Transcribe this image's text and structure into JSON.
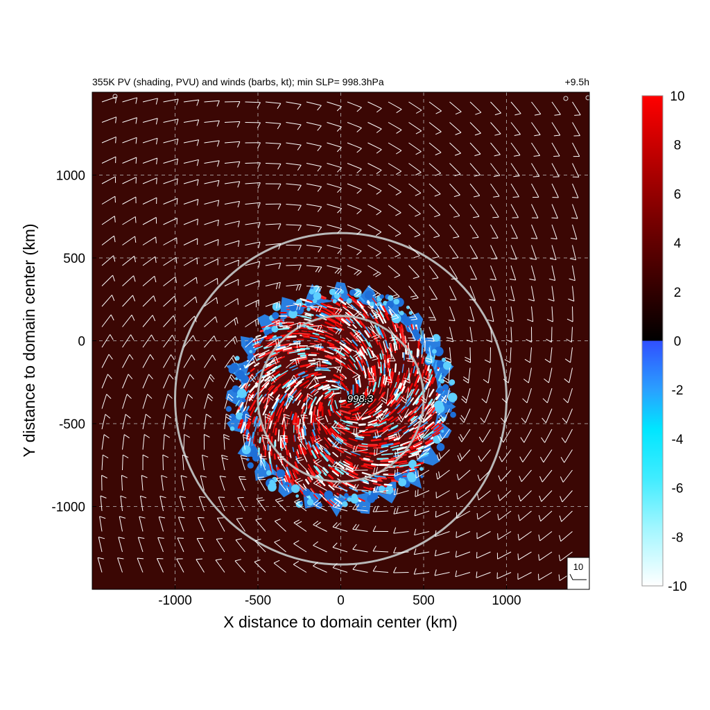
{
  "chart_data": {
    "type": "heatmap",
    "title": "355K PV (shading, PVU) and winds (barbs, kt); min SLP=  998.3hPa",
    "time_label": "+9.5h",
    "xlabel": "X distance to domain center (km)",
    "ylabel": "Y distance to domain center (km)",
    "xlim": [
      -1500,
      1500
    ],
    "ylim": [
      -1500,
      1500
    ],
    "x_ticks": [
      -1000,
      -500,
      0,
      500,
      1000
    ],
    "y_ticks": [
      1000,
      500,
      0,
      -500,
      -1000
    ],
    "x_tick_labels": [
      "-1000",
      "-500",
      "0",
      "500",
      "1000"
    ],
    "y_tick_labels": [
      "1000",
      "500",
      "0",
      "-500",
      "-1000"
    ],
    "grid": true,
    "grid_style": "dashed",
    "colorbar": {
      "range": [
        -10,
        10
      ],
      "ticks": [
        10,
        8,
        6,
        4,
        2,
        0,
        -2,
        -4,
        -6,
        -8,
        -10
      ],
      "tick_labels": [
        "10",
        "8",
        "6",
        "4",
        "2",
        "0",
        "-2",
        "-4",
        "-6",
        "-8",
        "-10"
      ],
      "colors_positive": [
        "#000000",
        "#3a0000",
        "#7a0000",
        "#c00000",
        "#ff0000"
      ],
      "colors_negative": [
        "#3050ff",
        "#2a90ff",
        "#00e0ff",
        "#80f0ff",
        "#ffffff"
      ]
    },
    "background_value_pvu": 2,
    "background_color": "#3b0704",
    "storm_center_km": [
      0,
      -350
    ],
    "min_slp_label": "998.3",
    "range_rings_km": [
      500,
      1000
    ],
    "ring_color": "#b8b8b8",
    "pv_disk_radius_km": [
      600,
      700
    ],
    "reference_barb": {
      "value_label": "10",
      "speed_kt": 10
    }
  }
}
